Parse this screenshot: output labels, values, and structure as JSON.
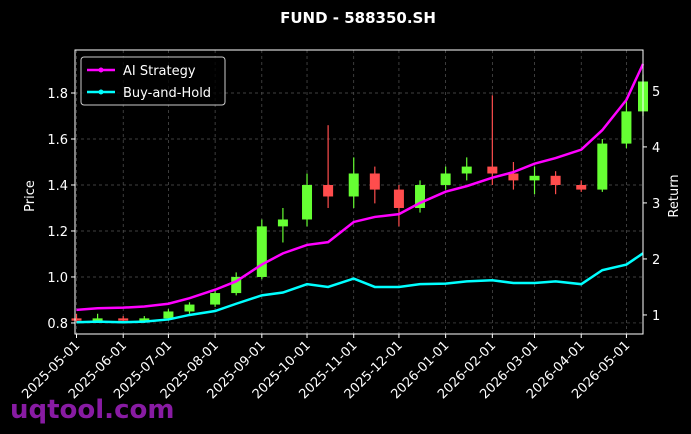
{
  "chart_data": {
    "type": "candlestick",
    "title": "FUND - 588350.SH",
    "ylabel": "Price",
    "y2label": "Return",
    "watermark": "uqtool.com",
    "x": [
      "2025-05-01",
      "2025-05-15",
      "2025-06-01",
      "2025-06-15",
      "2025-07-01",
      "2025-07-15",
      "2025-08-01",
      "2025-08-15",
      "2025-09-01",
      "2025-09-15",
      "2025-10-01",
      "2025-10-15",
      "2025-11-01",
      "2025-11-15",
      "2025-12-01",
      "2025-12-15",
      "2026-01-01",
      "2026-01-15",
      "2026-02-01",
      "2026-02-15",
      "2026-03-01",
      "2026-03-15",
      "2026-04-01",
      "2026-04-15",
      "2026-05-01",
      "2026-05-12"
    ],
    "open": [
      0.82,
      0.81,
      0.82,
      0.81,
      0.82,
      0.85,
      0.88,
      0.93,
      1.0,
      1.22,
      1.25,
      1.4,
      1.35,
      1.45,
      1.38,
      1.3,
      1.4,
      1.45,
      1.48,
      1.45,
      1.42,
      1.44,
      1.4,
      1.38,
      1.58,
      1.72
    ],
    "high": [
      0.84,
      0.84,
      0.83,
      0.83,
      0.86,
      0.89,
      0.95,
      1.02,
      1.25,
      1.3,
      1.45,
      1.66,
      1.52,
      1.48,
      1.4,
      1.42,
      1.48,
      1.52,
      1.79,
      1.5,
      1.48,
      1.46,
      1.42,
      1.6,
      1.78,
      1.88
    ],
    "low": [
      0.8,
      0.8,
      0.8,
      0.8,
      0.81,
      0.84,
      0.87,
      0.92,
      0.99,
      1.15,
      1.22,
      1.3,
      1.3,
      1.32,
      1.22,
      1.28,
      1.38,
      1.42,
      1.4,
      1.38,
      1.36,
      1.36,
      1.37,
      1.37,
      1.56,
      1.7
    ],
    "close": [
      0.81,
      0.82,
      0.81,
      0.82,
      0.85,
      0.88,
      0.93,
      1.0,
      1.22,
      1.25,
      1.4,
      1.35,
      1.45,
      1.38,
      1.3,
      1.4,
      1.45,
      1.48,
      1.45,
      1.42,
      1.44,
      1.4,
      1.38,
      1.58,
      1.72,
      1.85
    ],
    "up_color": "#66ff33",
    "down_color": "#ff4d4d",
    "series": [
      {
        "name": "AI Strategy",
        "color": "#ff00ff",
        "axis": "y2",
        "values": [
          1.09,
          1.12,
          1.13,
          1.15,
          1.2,
          1.3,
          1.45,
          1.6,
          1.9,
          2.1,
          2.25,
          2.3,
          2.66,
          2.75,
          2.8,
          3.0,
          3.2,
          3.3,
          3.45,
          3.55,
          3.7,
          3.8,
          3.95,
          4.3,
          4.84,
          5.48
        ]
      },
      {
        "name": "Buy-and-Hold",
        "color": "#00ffff",
        "axis": "y2",
        "values": [
          0.87,
          0.88,
          0.87,
          0.88,
          0.92,
          1.0,
          1.07,
          1.2,
          1.35,
          1.4,
          1.55,
          1.5,
          1.65,
          1.5,
          1.5,
          1.55,
          1.56,
          1.6,
          1.62,
          1.57,
          1.57,
          1.6,
          1.55,
          1.8,
          1.9,
          2.1
        ]
      }
    ],
    "xlim": [
      "2025-04-30",
      "2026-05-12"
    ],
    "xticks": [
      "2025-05-01",
      "2025-06-01",
      "2025-07-01",
      "2025-08-01",
      "2025-09-01",
      "2025-10-01",
      "2025-11-01",
      "2025-12-01",
      "2026-01-01",
      "2026-02-01",
      "2026-03-01",
      "2026-04-01",
      "2026-05-01"
    ],
    "ylim": [
      0.752,
      1.987
    ],
    "yticks": [
      0.8,
      {
        "value": 1,
        "label": "1.0"
      },
      1.2,
      1.4,
      1.6,
      1.8
    ],
    "y2lim": [
      0.66,
      5.73
    ],
    "y2ticks": [
      1,
      2,
      3,
      4,
      5
    ],
    "grid": true,
    "legend": "upper left"
  }
}
